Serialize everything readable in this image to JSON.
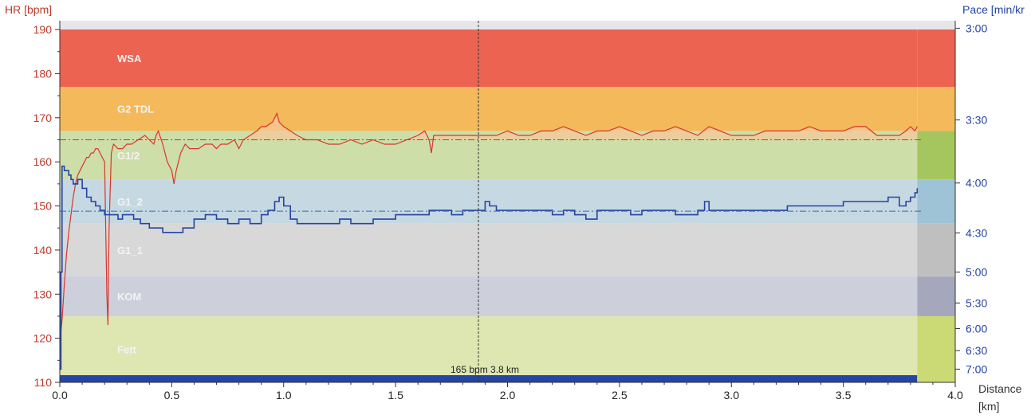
{
  "chart_data": {
    "type": "line",
    "title": "",
    "xlabel": "Distance [km]",
    "xlabel_parts": [
      "Distance",
      "[km]"
    ],
    "ylabel_left": "HR [bpm]",
    "ylabel_right": "Pace [min/km]",
    "ylabel_right_visible": "Pace [min/kr",
    "xlim": [
      0.0,
      4.0
    ],
    "ylim_left": [
      110,
      192
    ],
    "x_ticks": [
      "0.0",
      "0.5",
      "1.0",
      "1.5",
      "2.0",
      "2.5",
      "3.0",
      "3.5",
      "4.0"
    ],
    "x_tick_values": [
      0.0,
      0.5,
      1.0,
      1.5,
      2.0,
      2.5,
      3.0,
      3.5,
      4.0
    ],
    "y_left_ticks": [
      "110",
      "120",
      "130",
      "140",
      "150",
      "160",
      "170",
      "180",
      "190"
    ],
    "y_left_tick_values": [
      110,
      120,
      130,
      140,
      150,
      160,
      170,
      180,
      190
    ],
    "y_right_ticks": [
      {
        "label": "3:00",
        "hr": 190.3
      },
      {
        "label": "3:30",
        "hr": 169.5
      },
      {
        "label": "4:00",
        "hr": 155.2
      },
      {
        "label": "4:30",
        "hr": 143.9
      },
      {
        "label": "5:00",
        "hr": 135.0
      },
      {
        "label": "5:30",
        "hr": 128.0
      },
      {
        "label": "6:00",
        "hr": 122.2
      },
      {
        "label": "6:30",
        "hr": 117.2
      },
      {
        "label": "7:00",
        "hr": 113.0
      }
    ],
    "zones": [
      {
        "label": "Fett",
        "from": 110,
        "to": 125,
        "color": "#dee6b2",
        "bar_color": "#cbda75"
      },
      {
        "label": "KOM",
        "from": 125,
        "to": 134,
        "color": "#cdd0da",
        "bar_color": "#a5a8bd"
      },
      {
        "label": "G1_1",
        "from": 134,
        "to": 146,
        "color": "#d8d8d8",
        "bar_color": "#bfbfbf"
      },
      {
        "label": "G1_2",
        "from": 146,
        "to": 156,
        "color": "#c6d8e2",
        "bar_color": "#9ec3d6"
      },
      {
        "label": "G1/2",
        "from": 156,
        "to": 167,
        "color": "#cddea8",
        "bar_color": "#a5c65e"
      },
      {
        "label": "G2 TDL",
        "from": 167,
        "to": 177,
        "color": "#f4b95a",
        "bar_color": "#f4b95a"
      },
      {
        "label": "WSA",
        "from": 177,
        "to": 190,
        "color": "#ec6352",
        "bar_color": "#ec6352"
      }
    ],
    "zone_strip_end_x": 3.83,
    "avg_hr": 165,
    "avg_pace_line_hr": 148.8,
    "cursor": {
      "x": 1.87,
      "label": "165 bpm 3.8 km"
    },
    "series": [
      {
        "name": "HR",
        "axis": "left",
        "color": "#d9352c",
        "fill": "#f4c89a",
        "x": [
          0.0,
          0.01,
          0.02,
          0.03,
          0.04,
          0.05,
          0.06,
          0.07,
          0.08,
          0.09,
          0.1,
          0.11,
          0.12,
          0.13,
          0.14,
          0.15,
          0.16,
          0.17,
          0.18,
          0.19,
          0.2,
          0.21,
          0.215,
          0.22,
          0.23,
          0.24,
          0.26,
          0.28,
          0.3,
          0.32,
          0.35,
          0.38,
          0.4,
          0.42,
          0.43,
          0.44,
          0.46,
          0.48,
          0.5,
          0.51,
          0.52,
          0.54,
          0.56,
          0.58,
          0.6,
          0.62,
          0.65,
          0.68,
          0.7,
          0.72,
          0.75,
          0.78,
          0.8,
          0.82,
          0.85,
          0.88,
          0.9,
          0.92,
          0.95,
          0.96,
          0.97,
          0.98,
          1.0,
          1.03,
          1.06,
          1.1,
          1.15,
          1.2,
          1.25,
          1.3,
          1.35,
          1.4,
          1.45,
          1.5,
          1.55,
          1.6,
          1.63,
          1.65,
          1.66,
          1.67,
          1.7,
          1.75,
          1.8,
          1.85,
          1.9,
          1.95,
          2.0,
          2.05,
          2.1,
          2.15,
          2.2,
          2.25,
          2.3,
          2.35,
          2.4,
          2.45,
          2.5,
          2.55,
          2.6,
          2.65,
          2.7,
          2.75,
          2.8,
          2.85,
          2.9,
          2.95,
          3.0,
          3.05,
          3.1,
          3.15,
          3.2,
          3.25,
          3.3,
          3.35,
          3.4,
          3.45,
          3.5,
          3.55,
          3.6,
          3.65,
          3.7,
          3.75,
          3.78,
          3.8,
          3.82,
          3.83
        ],
        "values": [
          119,
          124,
          132,
          139,
          144,
          148,
          152,
          155,
          157,
          158,
          159,
          160,
          161,
          161,
          162,
          162,
          163,
          163,
          162,
          161,
          160,
          130,
          123,
          145,
          162,
          164,
          163,
          163,
          164,
          164,
          165,
          166,
          165,
          164,
          166,
          167,
          164,
          160,
          158,
          155,
          158,
          162,
          164,
          163,
          163,
          163,
          164,
          164,
          163,
          164,
          164,
          165,
          163,
          165,
          166,
          167,
          168,
          168,
          169,
          170,
          171,
          169,
          168,
          167,
          166,
          165,
          165,
          164,
          164,
          165,
          164,
          165,
          164,
          164,
          165,
          166,
          167,
          165,
          162,
          166,
          166,
          166,
          166,
          166,
          166,
          166,
          167,
          166,
          166,
          167,
          167,
          168,
          167,
          166,
          167,
          167,
          168,
          167,
          166,
          167,
          167,
          168,
          167,
          166,
          168,
          167,
          166,
          166,
          166,
          167,
          167,
          167,
          167,
          168,
          167,
          167,
          167,
          168,
          168,
          166,
          166,
          166,
          167,
          168,
          167,
          168
        ]
      },
      {
        "name": "Pace",
        "axis": "right",
        "color": "#2544a4",
        "x": [
          0.0,
          0.005,
          0.01,
          0.02,
          0.03,
          0.04,
          0.05,
          0.06,
          0.08,
          0.1,
          0.12,
          0.14,
          0.16,
          0.18,
          0.2,
          0.22,
          0.24,
          0.26,
          0.28,
          0.3,
          0.33,
          0.36,
          0.4,
          0.43,
          0.46,
          0.5,
          0.55,
          0.6,
          0.65,
          0.7,
          0.75,
          0.8,
          0.85,
          0.9,
          0.93,
          0.96,
          0.98,
          1.0,
          1.03,
          1.06,
          1.1,
          1.15,
          1.2,
          1.25,
          1.3,
          1.35,
          1.4,
          1.45,
          1.5,
          1.55,
          1.6,
          1.65,
          1.7,
          1.75,
          1.8,
          1.85,
          1.9,
          1.92,
          1.95,
          2.0,
          2.05,
          2.1,
          2.15,
          2.2,
          2.25,
          2.3,
          2.35,
          2.4,
          2.45,
          2.5,
          2.55,
          2.6,
          2.65,
          2.7,
          2.75,
          2.8,
          2.85,
          2.88,
          2.9,
          2.95,
          3.0,
          3.05,
          3.1,
          3.15,
          3.2,
          3.25,
          3.3,
          3.35,
          3.4,
          3.45,
          3.5,
          3.55,
          3.6,
          3.65,
          3.7,
          3.75,
          3.78,
          3.8,
          3.82,
          3.83
        ],
        "values_hr_scale": [
          113,
          135,
          159,
          158,
          158,
          157,
          156,
          155,
          156,
          154,
          152,
          151,
          150,
          149,
          148,
          148,
          148,
          147,
          148,
          148,
          147,
          146,
          145,
          145,
          144,
          144,
          145,
          147,
          148,
          147,
          146,
          147,
          146,
          148,
          149,
          151,
          152,
          150,
          147,
          146,
          146,
          146,
          146,
          147,
          146,
          146,
          147,
          147,
          148,
          148,
          148,
          149,
          149,
          148,
          149,
          149,
          151,
          150,
          149,
          149,
          149,
          149,
          149,
          148,
          149,
          148,
          147,
          149,
          149,
          149,
          148,
          149,
          149,
          149,
          148,
          148,
          149,
          151,
          149,
          149,
          149,
          149,
          149,
          149,
          149,
          150,
          150,
          150,
          150,
          150,
          151,
          151,
          151,
          151,
          152,
          150,
          151,
          152,
          153,
          154
        ]
      }
    ],
    "grid": false,
    "legend": "none"
  }
}
